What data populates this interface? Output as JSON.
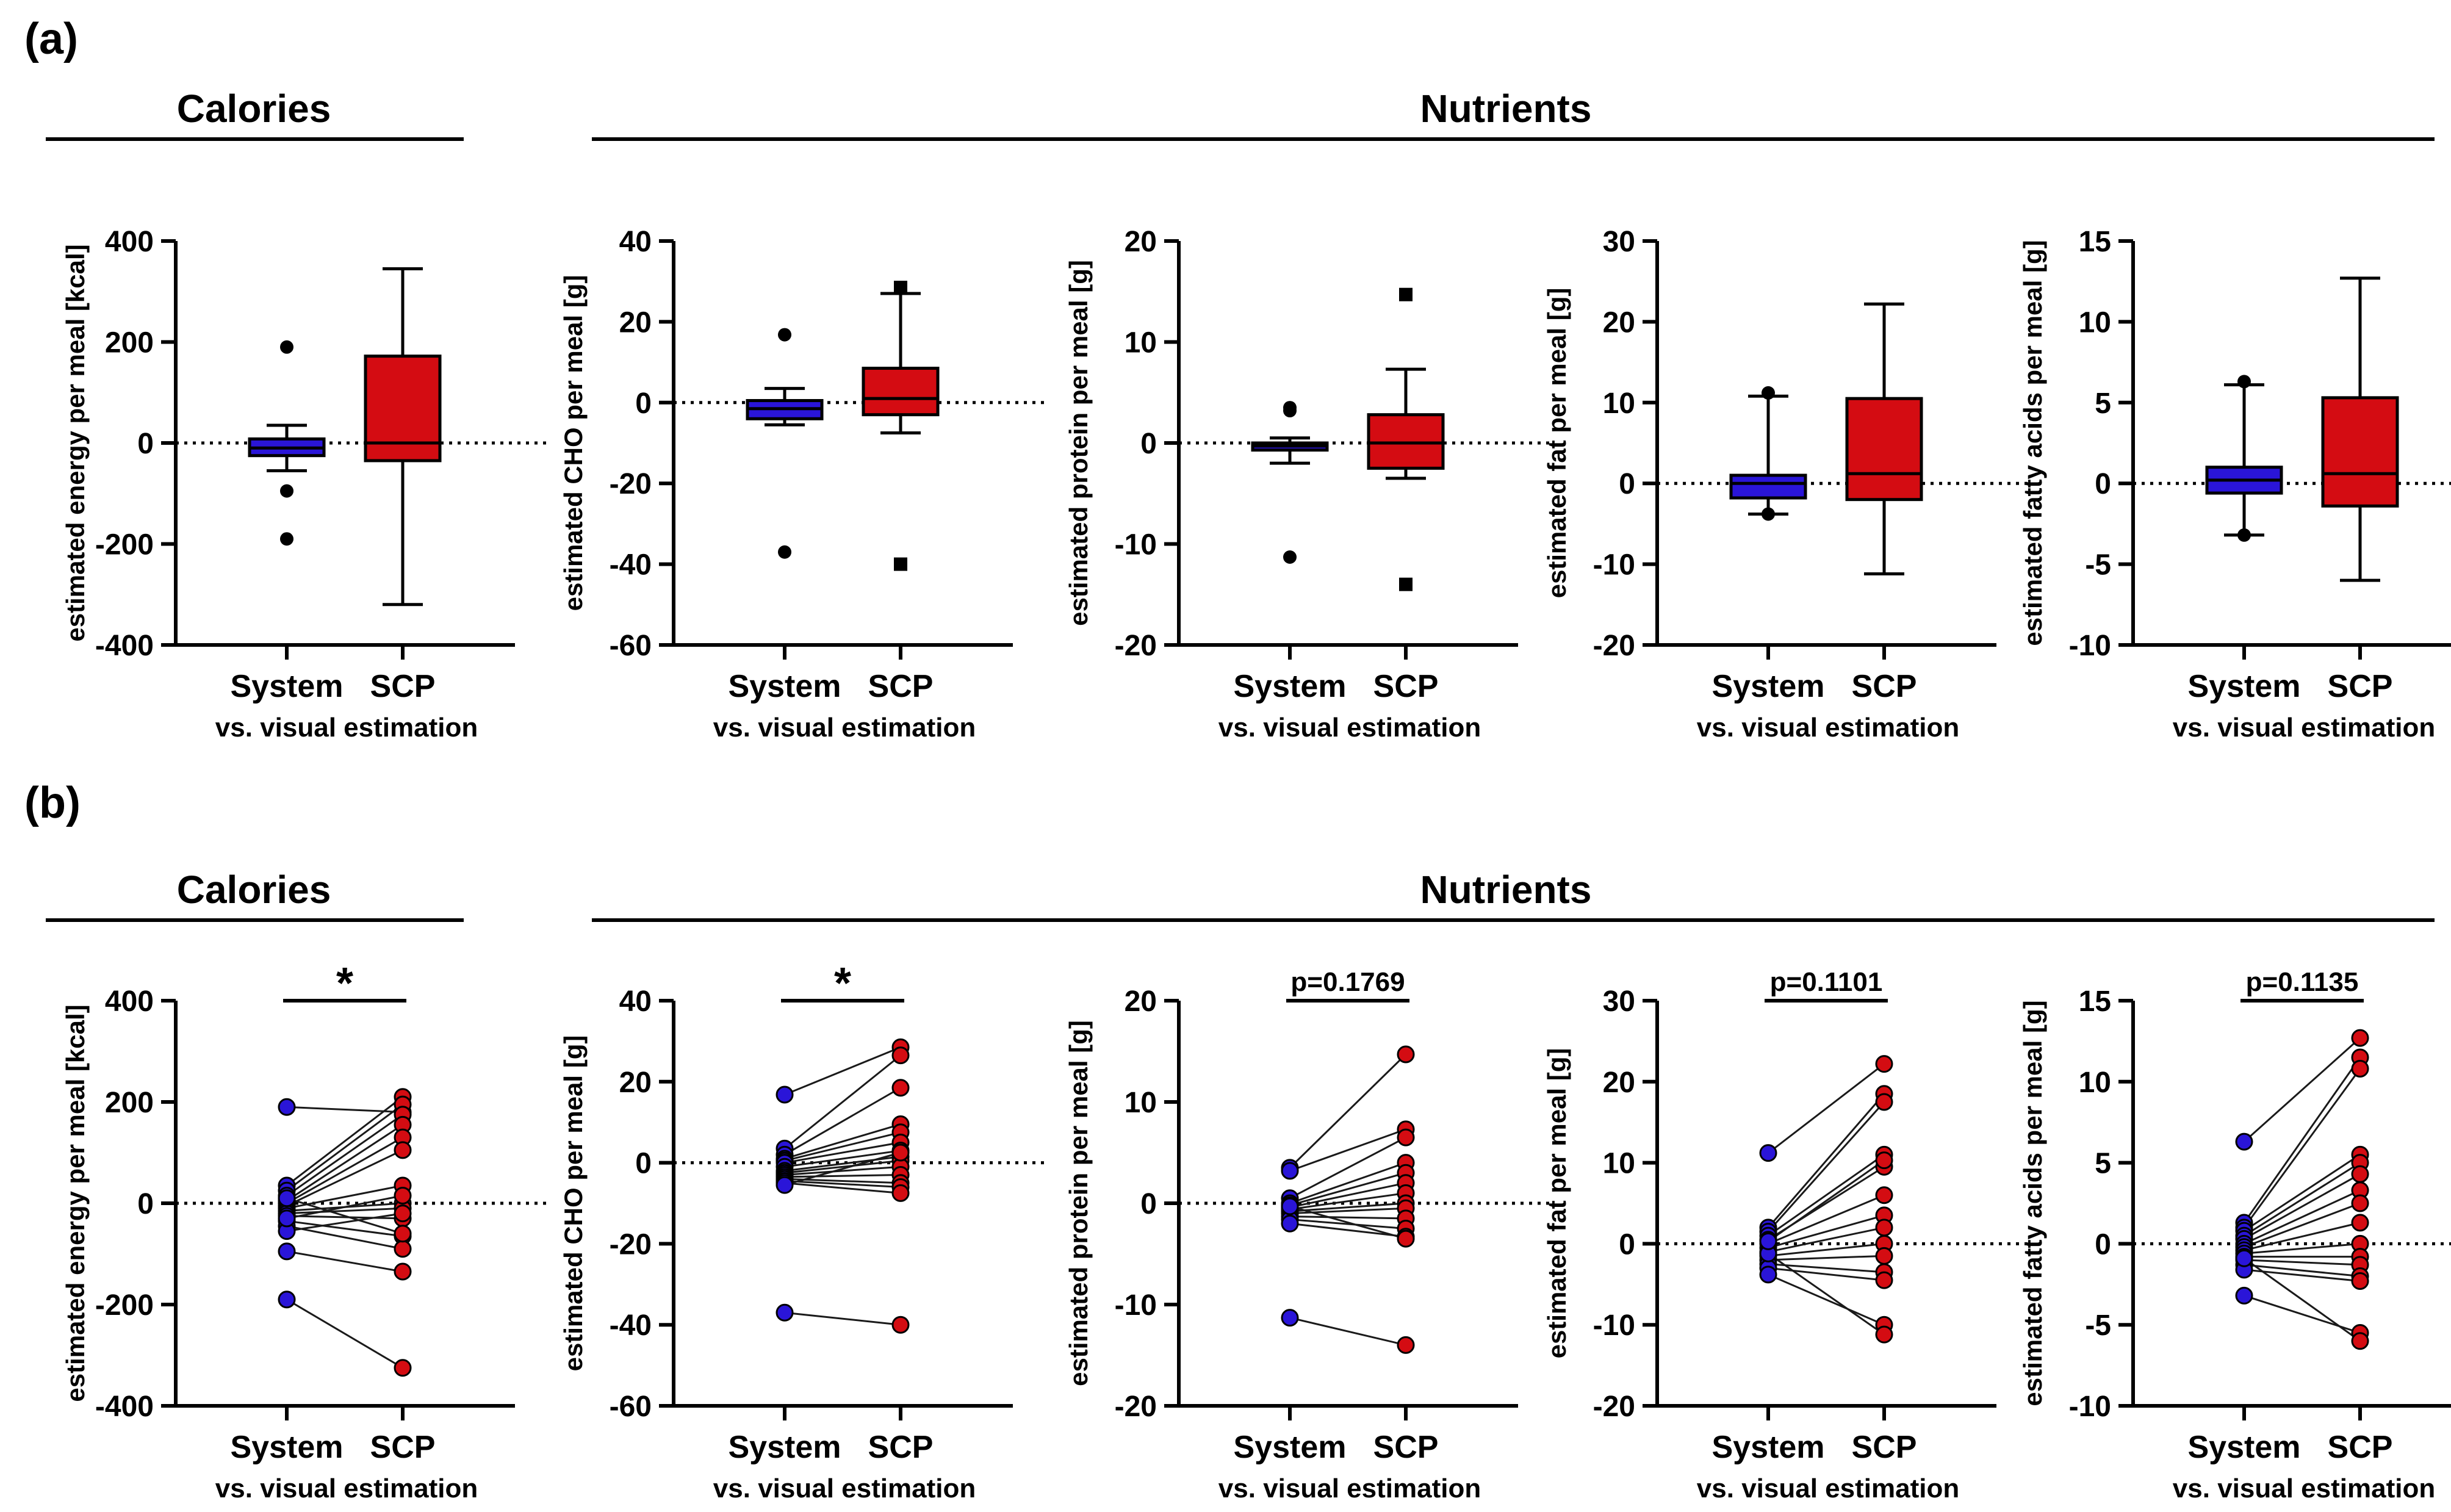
{
  "panels": [
    {
      "label": "(a)",
      "calories_header": "Calories",
      "nutrients_header": "Nutrients"
    },
    {
      "label": "(b)",
      "calories_header": "Calories",
      "nutrients_header": "Nutrients"
    }
  ],
  "colors": {
    "system": "#2a15d8",
    "scp": "#d40c12",
    "line": "#000000"
  },
  "group_labels": [
    "System",
    "SCP"
  ],
  "xlabel": "vs. visual estimation",
  "chart_data": [
    {
      "type": "box",
      "panel": "a",
      "ylabel": "estimated energy per meal [kcal]",
      "ylim": [
        -400,
        400
      ],
      "yticks": [
        -400,
        -200,
        0,
        200,
        400
      ],
      "categories": [
        "System",
        "SCP"
      ],
      "boxes": [
        {
          "name": "System",
          "q1": -25,
          "median": -10,
          "q3": 8,
          "whisker_low": -55,
          "whisker_high": 35,
          "outliers": [
            190,
            -95,
            -190
          ]
        },
        {
          "name": "SCP",
          "q1": -35,
          "median": 0,
          "q3": 172,
          "whisker_low": -320,
          "whisker_high": 345,
          "outliers": []
        }
      ]
    },
    {
      "type": "box",
      "panel": "a",
      "ylabel": "estimated CHO per meal [g]",
      "ylim": [
        -60,
        40
      ],
      "yticks": [
        -60,
        -40,
        -20,
        0,
        20,
        40
      ],
      "categories": [
        "System",
        "SCP"
      ],
      "boxes": [
        {
          "name": "System",
          "q1": -4,
          "median": -1.5,
          "q3": 0.5,
          "whisker_low": -5.5,
          "whisker_high": 3.5,
          "outliers": [
            16.8,
            -37
          ]
        },
        {
          "name": "SCP",
          "q1": -3,
          "median": 1,
          "q3": 8.5,
          "whisker_low": -7.5,
          "whisker_high": 27,
          "outliers": [
            28.5,
            -40
          ]
        }
      ]
    },
    {
      "type": "box",
      "panel": "a",
      "ylabel": "estimated protein per meal [g]",
      "ylim": [
        -20,
        20
      ],
      "yticks": [
        -20,
        -10,
        0,
        10,
        20
      ],
      "categories": [
        "System",
        "SCP"
      ],
      "boxes": [
        {
          "name": "System",
          "q1": -0.7,
          "median": -0.3,
          "q3": 0,
          "whisker_low": -2,
          "whisker_high": 0.5,
          "outliers": [
            3.5,
            3.2,
            -11.3
          ]
        },
        {
          "name": "SCP",
          "q1": -2.5,
          "median": 0,
          "q3": 2.8,
          "whisker_low": -3.5,
          "whisker_high": 7.3,
          "outliers": [
            14.7,
            -14
          ]
        }
      ]
    },
    {
      "type": "box",
      "panel": "a",
      "ylabel": "estimated fat per meal [g]",
      "ylim": [
        -20,
        30
      ],
      "yticks": [
        -20,
        -10,
        0,
        10,
        20,
        30
      ],
      "categories": [
        "System",
        "SCP"
      ],
      "boxes": [
        {
          "name": "System",
          "q1": -1.8,
          "median": 0,
          "q3": 1,
          "whisker_low": -3.8,
          "whisker_high": 10.8,
          "outliers": [
            11.2,
            -3.8
          ]
        },
        {
          "name": "SCP",
          "q1": -2,
          "median": 1.2,
          "q3": 10.5,
          "whisker_low": -11.2,
          "whisker_high": 22.2,
          "outliers": []
        }
      ]
    },
    {
      "type": "box",
      "panel": "a",
      "ylabel": "estimated fatty acids per meal [g]",
      "ylim": [
        -10,
        15
      ],
      "yticks": [
        -10,
        -5,
        0,
        5,
        10,
        15
      ],
      "categories": [
        "System",
        "SCP"
      ],
      "boxes": [
        {
          "name": "System",
          "q1": -0.6,
          "median": 0.2,
          "q3": 1,
          "whisker_low": -3.2,
          "whisker_high": 6.1,
          "outliers": [
            6.3,
            -3.2
          ]
        },
        {
          "name": "SCP",
          "q1": -1.4,
          "median": 0.6,
          "q3": 5.3,
          "whisker_low": -6,
          "whisker_high": 12.7,
          "outliers": []
        }
      ]
    },
    {
      "type": "paired",
      "panel": "b",
      "ylabel": "estimated energy per meal [kcal]",
      "ylim": [
        -400,
        400
      ],
      "yticks": [
        -400,
        -200,
        0,
        200,
        400
      ],
      "categories": [
        "System",
        "SCP"
      ],
      "significance": "*",
      "pairs": [
        [
          190,
          180
        ],
        [
          35,
          210
        ],
        [
          25,
          195
        ],
        [
          15,
          175
        ],
        [
          5,
          155
        ],
        [
          0,
          130
        ],
        [
          -5,
          105
        ],
        [
          -10,
          35
        ],
        [
          -15,
          0
        ],
        [
          -20,
          -10
        ],
        [
          -25,
          -30
        ],
        [
          -35,
          -65
        ],
        [
          -45,
          -90
        ],
        [
          -55,
          -20
        ],
        [
          -95,
          -135
        ],
        [
          -190,
          -325
        ],
        [
          10,
          -60
        ],
        [
          -30,
          15
        ]
      ]
    },
    {
      "type": "paired",
      "panel": "b",
      "ylabel": "estimated CHO per meal [g]",
      "ylim": [
        -60,
        40
      ],
      "yticks": [
        -60,
        -40,
        -20,
        0,
        20,
        40
      ],
      "categories": [
        "System",
        "SCP"
      ],
      "significance": "*",
      "pairs": [
        [
          16.8,
          28.5
        ],
        [
          3.5,
          26.5
        ],
        [
          2,
          18.5
        ],
        [
          1,
          9.5
        ],
        [
          0.5,
          7.5
        ],
        [
          0,
          5
        ],
        [
          -1,
          3
        ],
        [
          -2,
          1.5
        ],
        [
          -2.5,
          0.5
        ],
        [
          -3,
          -1
        ],
        [
          -3.5,
          -3
        ],
        [
          -4,
          -5
        ],
        [
          -4.5,
          -6
        ],
        [
          -5,
          -7.5
        ],
        [
          -5.5,
          2.5
        ],
        [
          -37,
          -40
        ]
      ]
    },
    {
      "type": "paired",
      "panel": "b",
      "ylabel": "estimated protein per meal [g]",
      "ylim": [
        -20,
        20
      ],
      "yticks": [
        -20,
        -10,
        0,
        10,
        20
      ],
      "categories": [
        "System",
        "SCP"
      ],
      "significance": "p=0.1769",
      "pairs": [
        [
          3.5,
          14.7
        ],
        [
          3.2,
          7.3
        ],
        [
          0.5,
          6.5
        ],
        [
          0,
          4
        ],
        [
          -0.2,
          3
        ],
        [
          -0.4,
          2
        ],
        [
          -0.6,
          1
        ],
        [
          -0.8,
          0
        ],
        [
          -1,
          -0.5
        ],
        [
          -1.3,
          -1.5
        ],
        [
          -1.6,
          -2.5
        ],
        [
          -2,
          -3.3
        ],
        [
          -0.3,
          -3.5
        ],
        [
          -11.3,
          -14
        ]
      ]
    },
    {
      "type": "paired",
      "panel": "b",
      "ylabel": "estimated fat per meal [g]",
      "ylim": [
        -20,
        30
      ],
      "yticks": [
        -20,
        -10,
        0,
        10,
        20,
        30
      ],
      "categories": [
        "System",
        "SCP"
      ],
      "significance": "p=0.1101",
      "pairs": [
        [
          11.2,
          22.2
        ],
        [
          2,
          18.5
        ],
        [
          1.5,
          17.5
        ],
        [
          1,
          11
        ],
        [
          0.5,
          9.5
        ],
        [
          0,
          6
        ],
        [
          -0.5,
          3.5
        ],
        [
          -1,
          2
        ],
        [
          -1.5,
          0
        ],
        [
          -2,
          -1.5
        ],
        [
          -2.5,
          -3.5
        ],
        [
          -3,
          -4.5
        ],
        [
          -3.8,
          -10
        ],
        [
          -1.2,
          -11.2
        ],
        [
          0.3,
          10.3
        ]
      ]
    },
    {
      "type": "paired",
      "panel": "b",
      "ylabel": "estimated fatty acids per meal [g]",
      "ylim": [
        -10,
        15
      ],
      "yticks": [
        -10,
        -5,
        0,
        5,
        10,
        15
      ],
      "categories": [
        "System",
        "SCP"
      ],
      "significance": "p=0.1135",
      "pairs": [
        [
          6.3,
          12.7
        ],
        [
          1.3,
          11.5
        ],
        [
          1,
          10.8
        ],
        [
          0.8,
          5.5
        ],
        [
          0.5,
          5
        ],
        [
          0.3,
          4.3
        ],
        [
          0,
          3.3
        ],
        [
          -0.2,
          2.5
        ],
        [
          -0.4,
          1.3
        ],
        [
          -0.6,
          0
        ],
        [
          -0.8,
          -0.8
        ],
        [
          -1,
          -1.3
        ],
        [
          -1.3,
          -2
        ],
        [
          -1.6,
          -2.3
        ],
        [
          -3.2,
          -5.5
        ],
        [
          -0.9,
          -6
        ]
      ]
    }
  ]
}
